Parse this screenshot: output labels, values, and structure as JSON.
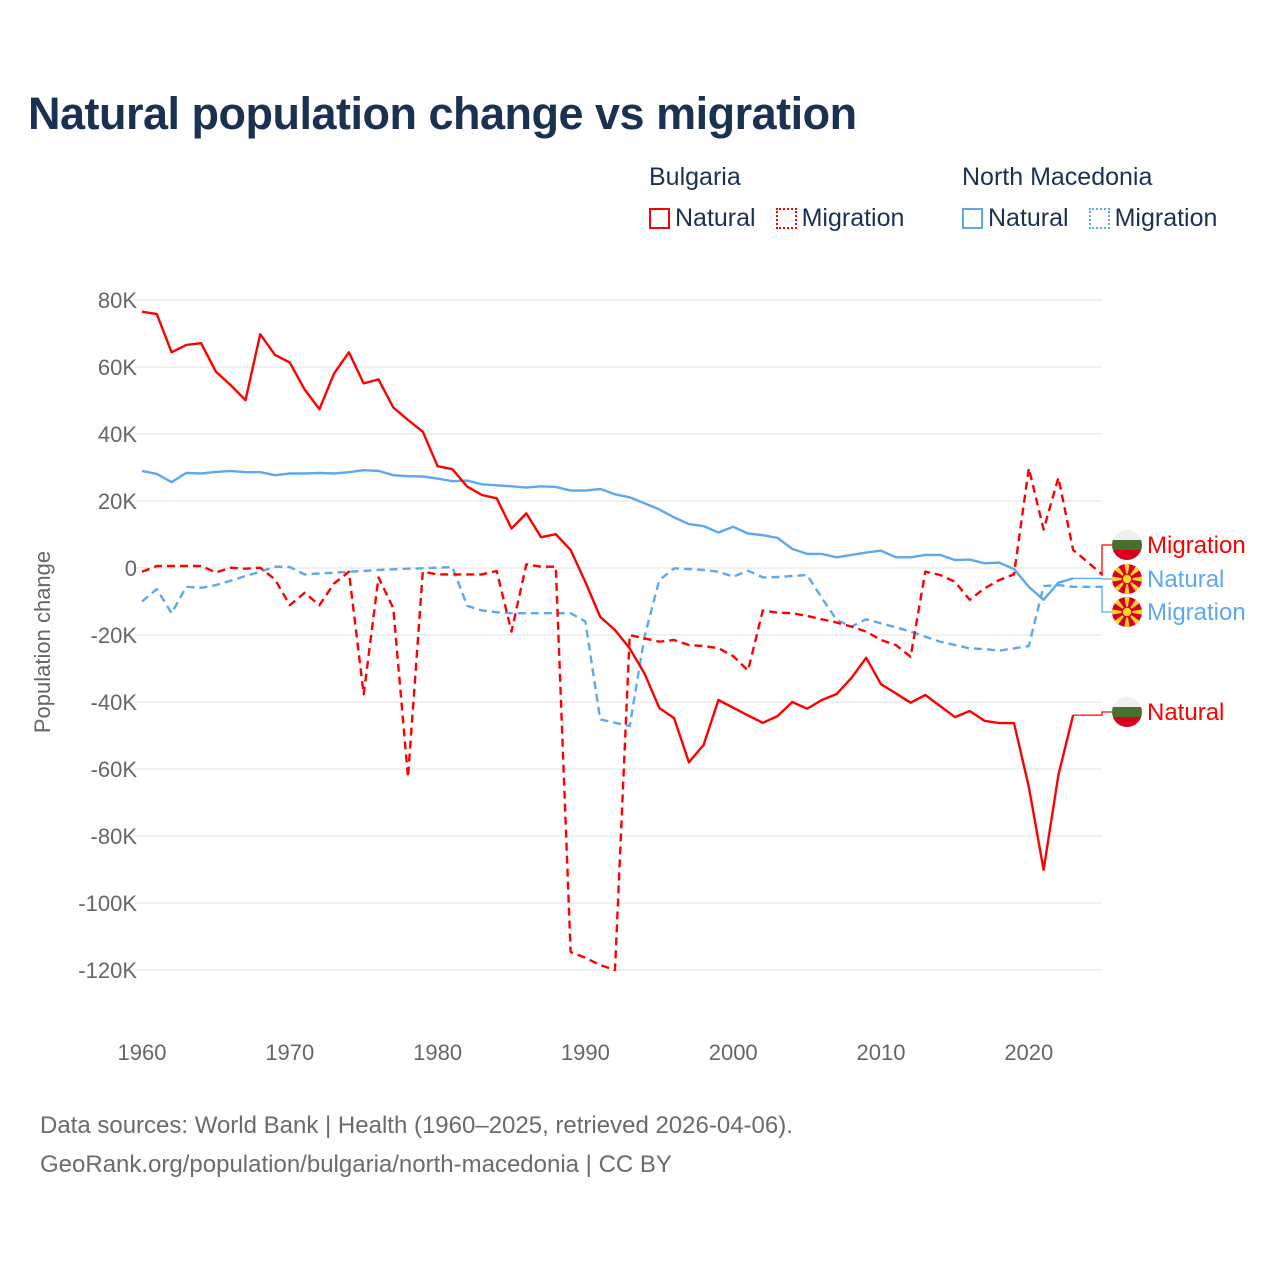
{
  "title": "Natural population change vs migration",
  "legend": {
    "groups": [
      {
        "name": "Bulgaria",
        "items": [
          {
            "label": "Natural",
            "style": "solid",
            "color": "#ff0000"
          },
          {
            "label": "Migration",
            "style": "dotted",
            "color": "#ff0000"
          }
        ]
      },
      {
        "name": "North Macedonia",
        "items": [
          {
            "label": "Natural",
            "style": "solid",
            "color": "#5ea8ec"
          },
          {
            "label": "Migration",
            "style": "dotted",
            "color": "#5ea8ec"
          }
        ]
      }
    ]
  },
  "footer": {
    "line1": "Data sources: World Bank | Health (1960–2025, retrieved 2026-04-06).",
    "line2": "GeoRank.org/population/bulgaria/north-macedonia | CC BY"
  },
  "chart_data": {
    "type": "line",
    "title": "Natural population change vs migration",
    "xlabel": "",
    "ylabel": "Population change",
    "xlim": [
      1960,
      2025
    ],
    "ylim": [
      -120000,
      80000
    ],
    "x_ticks": [
      1960,
      1970,
      1980,
      1990,
      2000,
      2010,
      2020
    ],
    "x_tick_labels": [
      "1960",
      "1970",
      "1980",
      "1990",
      "2000",
      "2010",
      "2020"
    ],
    "y_ticks": [
      80000,
      60000,
      40000,
      20000,
      0,
      -20000,
      -40000,
      -60000,
      -80000,
      -100000,
      -120000
    ],
    "y_tick_labels": [
      "80K",
      "60K",
      "40K",
      "20K",
      "0",
      "-20K",
      "-40K",
      "-60K",
      "-80K",
      "-100K",
      "-120K"
    ],
    "grid": true,
    "legend_position": "top-right",
    "value_unit": "thousands",
    "series": [
      {
        "name": "Bulgaria Natural",
        "country": "Bulgaria",
        "kind": "Natural",
        "color": "#ff0000",
        "dashed": false,
        "end_label": "Natural",
        "flag": "bulgaria-flag",
        "start_year": 1960,
        "values": [
          76.5,
          75.8,
          64.4,
          66.6,
          67.1,
          58.6,
          54.6,
          50.1,
          69.8,
          63.6,
          61.3,
          53.3,
          47.4,
          58.1,
          64.4,
          55.1,
          56.3,
          47.9,
          44.2,
          40.7,
          30.4,
          29.5,
          24.3,
          21.8,
          20.8,
          11.8,
          16.3,
          9.2,
          10.1,
          5.4,
          -4.2,
          -14.6,
          -18.5,
          -24,
          -31.5,
          -41.8,
          -44.8,
          -58,
          -52.8,
          -39.4,
          -41.7,
          -44,
          -46.2,
          -44.2,
          -40,
          -42,
          -39.4,
          -37.6,
          -32.8,
          -26.8,
          -34.7,
          -37.4,
          -40.2,
          -37.9,
          -41.2,
          -44.5,
          -42.7,
          -45.6,
          -46.3,
          -46.3,
          -65.3,
          -90.1,
          -61.8,
          -43.9
        ]
      },
      {
        "name": "Bulgaria Migration",
        "country": "Bulgaria",
        "kind": "Migration",
        "color": "#ff0000",
        "dashed": true,
        "end_label": "Migration",
        "flag": "bulgaria-flag",
        "start_year": 1960,
        "values": [
          -1.1,
          0.6,
          0.6,
          0.6,
          0.6,
          -1.3,
          0.1,
          -0.2,
          0.1,
          -3.4,
          -11.1,
          -7.4,
          -11.1,
          -4.6,
          -1.1,
          -37.7,
          -2.8,
          -12,
          -62.5,
          -1.1,
          -1.9,
          -1.9,
          -1.9,
          -1.9,
          -0.9,
          -19,
          1.1,
          0.4,
          0.4,
          -114.6,
          -116.4,
          -118.5,
          -120,
          -20,
          -21,
          -22,
          -21.5,
          -23,
          -23.3,
          -23.9,
          -26.3,
          -30.6,
          -12.7,
          -13.3,
          -13.5,
          -14.3,
          -15.3,
          -16.3,
          -17.5,
          -19,
          -21.5,
          -23,
          -26.5,
          -1.1,
          -2.1,
          -4.1,
          -9.5,
          -6.1,
          -3.6,
          -1.9,
          29.8,
          11.5,
          27,
          5.4,
          1.7,
          -2.1
        ]
      },
      {
        "name": "North Macedonia Natural",
        "country": "North Macedonia",
        "kind": "Natural",
        "color": "#5ea8ec",
        "dashed": false,
        "end_label": "Natural",
        "flag": "north-macedonia-flag",
        "start_year": 1960,
        "values": [
          29,
          28.1,
          25.6,
          28.4,
          28.2,
          28.7,
          29,
          28.6,
          28.6,
          27.7,
          28.2,
          28.2,
          28.4,
          28.2,
          28.6,
          29.2,
          29,
          27.7,
          27.4,
          27.3,
          26.7,
          25.9,
          26.1,
          25,
          24.7,
          24.4,
          24,
          24.4,
          24.2,
          23.1,
          23.1,
          23.6,
          22,
          21.1,
          19.3,
          17.5,
          15.1,
          13.1,
          12.5,
          10.6,
          12.3,
          10.3,
          9.8,
          9,
          5.7,
          4.2,
          4.2,
          3.2,
          3.9,
          4.6,
          5.2,
          3.2,
          3.2,
          3.9,
          3.9,
          2.4,
          2.5,
          1.4,
          1.6,
          -0.3,
          -5.6,
          -9.5,
          -4.4,
          -3.1
        ]
      },
      {
        "name": "North Macedonia Migration",
        "country": "North Macedonia",
        "kind": "Migration",
        "color": "#5ea8ec",
        "dashed": true,
        "end_label": "Migration",
        "flag": "north-macedonia-flag",
        "start_year": 1960,
        "values": [
          -10,
          -6.3,
          -13.5,
          -5.6,
          -5.9,
          -5.1,
          -3.8,
          -2.4,
          -1.1,
          0.4,
          0.3,
          -1.9,
          -1.6,
          -1.4,
          -1.1,
          -0.9,
          -0.6,
          -0.4,
          -0.2,
          -0.1,
          0.1,
          0.3,
          -11.3,
          -12.7,
          -13.2,
          -13.5,
          -13.5,
          -13.5,
          -13.5,
          -13.5,
          -16,
          -45.2,
          -46.2,
          -47.2,
          -20.5,
          -3.6,
          -0.1,
          -0.3,
          -0.6,
          -1.1,
          -2.6,
          -0.8,
          -2.8,
          -2.7,
          -2.4,
          -2.1,
          -9,
          -15.5,
          -17.5,
          -15.3,
          -16.5,
          -17.7,
          -19,
          -20.5,
          -22,
          -23,
          -24,
          -24.2,
          -24.7,
          -24,
          -23.3,
          -5.4,
          -5.1,
          -5.6,
          -5.6,
          -5.6
        ]
      }
    ]
  }
}
